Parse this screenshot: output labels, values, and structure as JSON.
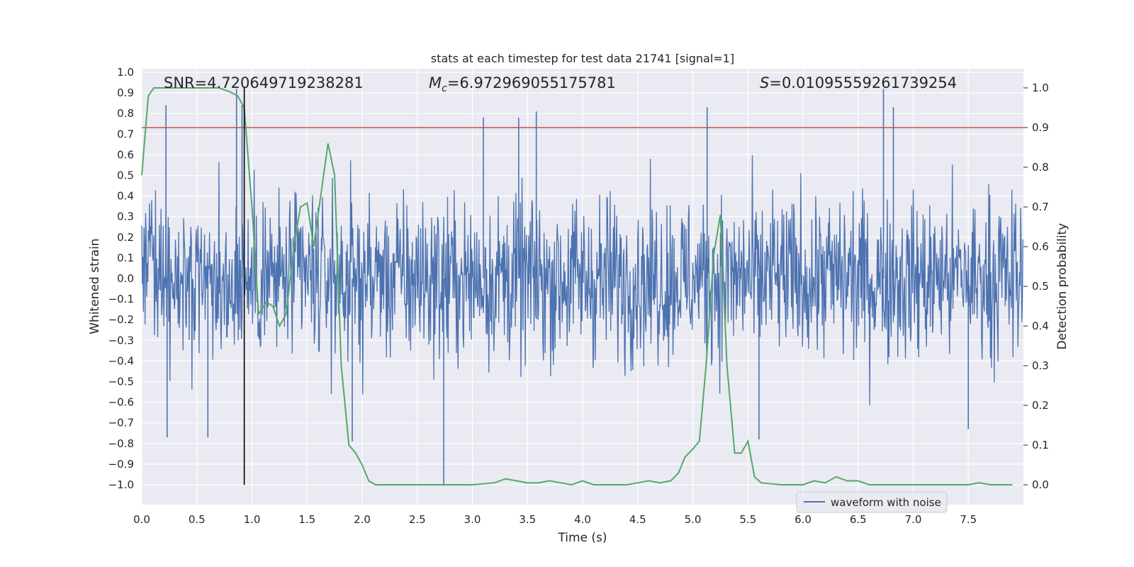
{
  "chart_data": {
    "type": "line",
    "title": "stats at each timestep for test data 21741 [signal=1]",
    "xlabel": "Time (s)",
    "ylabel": "Whitened strain",
    "y2label": "Detection probability",
    "xlim": [
      0.0,
      8.0
    ],
    "ylim": [
      -1.0,
      1.0
    ],
    "y2lim": [
      0.0,
      1.0
    ],
    "xticks": [
      "0.0",
      "0.5",
      "1.0",
      "1.5",
      "2.0",
      "2.5",
      "3.0",
      "3.5",
      "4.0",
      "4.5",
      "5.0",
      "5.5",
      "6.0",
      "6.5",
      "7.0",
      "7.5"
    ],
    "xtick_values": [
      0,
      0.5,
      1,
      1.5,
      2,
      2.5,
      3,
      3.5,
      4,
      4.5,
      5,
      5.5,
      6,
      6.5,
      7,
      7.5
    ],
    "yticks": [
      "1.0",
      "0.9",
      "0.8",
      "0.7",
      "0.6",
      "0.5",
      "0.4",
      "0.3",
      "0.2",
      "0.1",
      "0.0",
      "−0.1",
      "−0.2",
      "−0.3",
      "−0.4",
      "−0.5",
      "−0.6",
      "−0.7",
      "−0.8",
      "−0.9",
      "−1.0"
    ],
    "ytick_values": [
      1.0,
      0.9,
      0.8,
      0.7,
      0.6,
      0.5,
      0.4,
      0.3,
      0.2,
      0.1,
      0.0,
      -0.1,
      -0.2,
      -0.3,
      -0.4,
      -0.5,
      -0.6,
      -0.7,
      -0.8,
      -0.9,
      -1.0
    ],
    "y2ticks": [
      "1.0",
      "0.9",
      "0.8",
      "0.7",
      "0.6",
      "0.5",
      "0.4",
      "0.3",
      "0.2",
      "0.1",
      "0.0"
    ],
    "y2tick_values": [
      1.0,
      0.9,
      0.8,
      0.7,
      0.6,
      0.5,
      0.4,
      0.3,
      0.2,
      0.1,
      0.0
    ],
    "annotations": {
      "snr": "SNR=4.720649719238281",
      "mc_symbol": "M",
      "mc_sub": "c",
      "mc_value": "=6.972969055175781",
      "s_symbol": "S",
      "s_value": "=0.01095559261739254"
    },
    "threshold_line": {
      "y2": 0.9,
      "color": "#c44e52"
    },
    "vertical_line": {
      "x": 0.93,
      "ymin": -1.0,
      "ymax": 0.93,
      "color": "#000000"
    },
    "legend": {
      "label": "waveform with noise",
      "placement": "bottom-right"
    },
    "series": [
      {
        "name": "waveform with noise",
        "axis": "left",
        "color": "#4c72b0",
        "n_samples": 1600,
        "envelope": 0.55,
        "notable_peaks": [
          {
            "x": 0.22,
            "y": 0.84
          },
          {
            "x": 0.86,
            "y": 0.92
          },
          {
            "x": 0.91,
            "y": 0.84
          },
          {
            "x": 3.1,
            "y": 0.78
          },
          {
            "x": 3.42,
            "y": 0.78
          },
          {
            "x": 3.58,
            "y": 0.81
          },
          {
            "x": 5.13,
            "y": 0.83
          },
          {
            "x": 6.73,
            "y": 0.92
          },
          {
            "x": 6.82,
            "y": 0.83
          },
          {
            "x": 0.23,
            "y": -0.77
          },
          {
            "x": 0.6,
            "y": -0.77
          },
          {
            "x": 2.74,
            "y": -1.0
          },
          {
            "x": 1.91,
            "y": -0.79
          },
          {
            "x": 5.6,
            "y": -0.78
          },
          {
            "x": 7.5,
            "y": -0.73
          }
        ]
      },
      {
        "name": "detection probability",
        "axis": "right",
        "color": "#55a868",
        "x": [
          0.0,
          0.06,
          0.11,
          0.2,
          0.3,
          0.4,
          0.5,
          0.6,
          0.7,
          0.8,
          0.87,
          0.93,
          1.0,
          1.06,
          1.13,
          1.19,
          1.25,
          1.31,
          1.38,
          1.44,
          1.5,
          1.56,
          1.62,
          1.69,
          1.75,
          1.81,
          1.88,
          1.94,
          2.0,
          2.06,
          2.12,
          2.25,
          2.5,
          3.0,
          3.2,
          3.25,
          3.3,
          3.4,
          3.5,
          3.6,
          3.7,
          3.8,
          3.9,
          4.0,
          4.1,
          4.2,
          4.3,
          4.4,
          4.5,
          4.6,
          4.7,
          4.8,
          4.87,
          4.93,
          5.0,
          5.06,
          5.12,
          5.19,
          5.25,
          5.31,
          5.38,
          5.44,
          5.5,
          5.56,
          5.62,
          5.8,
          6.0,
          6.1,
          6.2,
          6.3,
          6.4,
          6.5,
          6.6,
          6.7,
          6.8,
          7.0,
          7.2,
          7.4,
          7.5,
          7.6,
          7.7,
          7.8,
          7.9
        ],
        "values": [
          0.78,
          0.98,
          1.0,
          1.0,
          1.0,
          1.0,
          1.0,
          1.0,
          1.0,
          0.99,
          0.98,
          0.95,
          0.7,
          0.43,
          0.46,
          0.45,
          0.4,
          0.43,
          0.6,
          0.7,
          0.71,
          0.6,
          0.72,
          0.86,
          0.78,
          0.3,
          0.1,
          0.08,
          0.05,
          0.01,
          0.0,
          0.0,
          0.0,
          0.0,
          0.005,
          0.01,
          0.015,
          0.01,
          0.005,
          0.005,
          0.01,
          0.005,
          0.0,
          0.01,
          0.0,
          0.0,
          0.0,
          0.0,
          0.005,
          0.01,
          0.005,
          0.01,
          0.03,
          0.07,
          0.09,
          0.11,
          0.3,
          0.58,
          0.68,
          0.3,
          0.08,
          0.08,
          0.11,
          0.02,
          0.005,
          0.0,
          0.0,
          0.01,
          0.005,
          0.02,
          0.01,
          0.01,
          0.0,
          0.0,
          0.0,
          0.0,
          0.0,
          0.0,
          0.0,
          0.005,
          0.0,
          0.0,
          0.0
        ]
      }
    ]
  }
}
